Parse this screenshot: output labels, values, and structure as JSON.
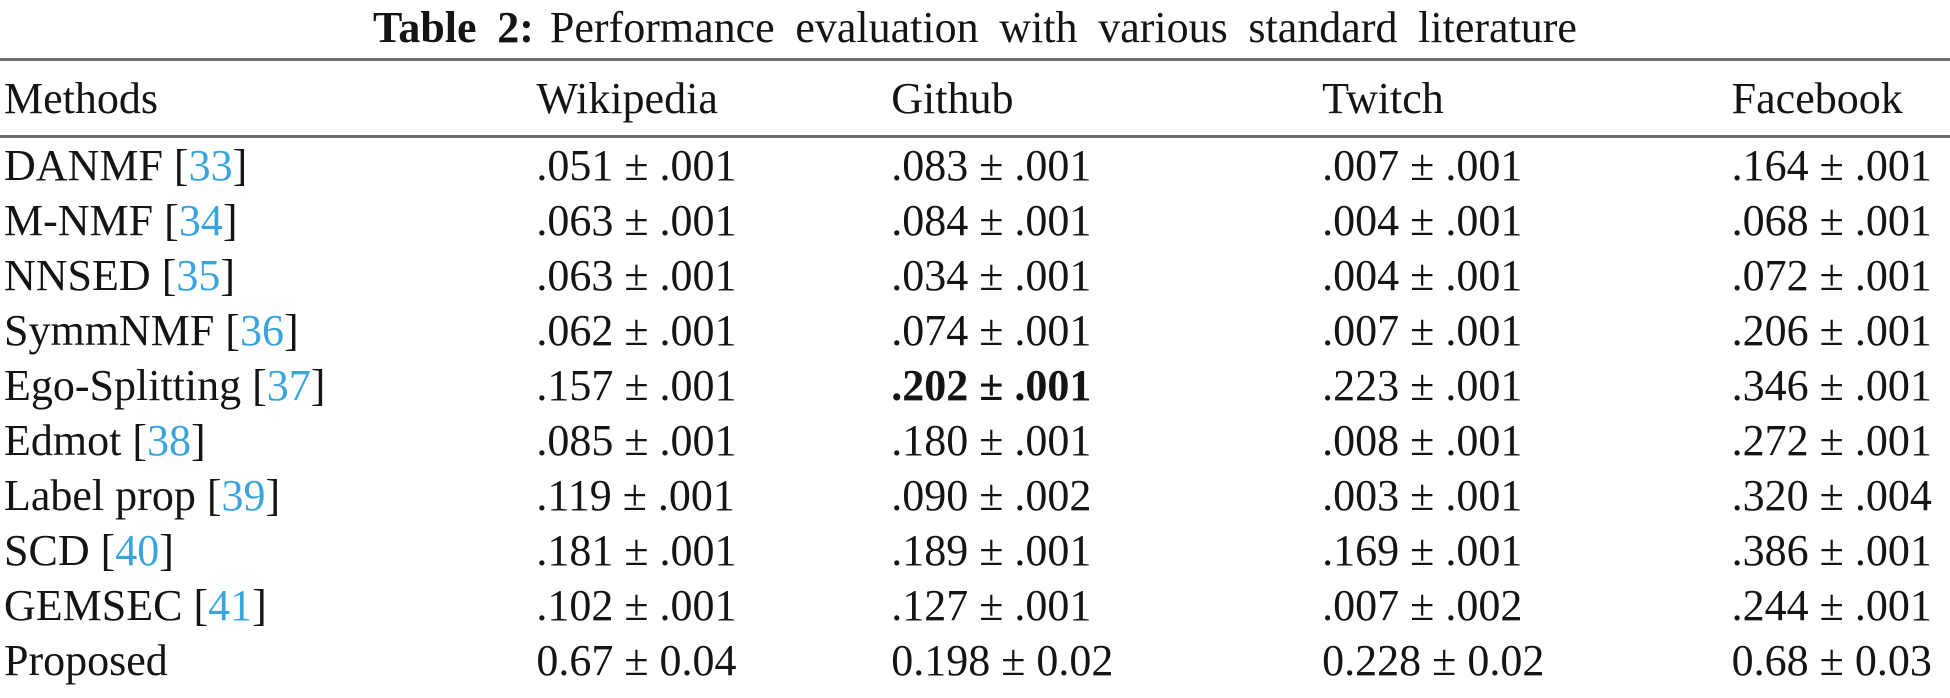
{
  "caption": {
    "label": "Table 2:",
    "text": "Performance evaluation with various standard literature"
  },
  "table": {
    "columns": [
      "Methods",
      "Wikipedia",
      "Github",
      "Twitch",
      "Facebook"
    ],
    "rows": [
      {
        "method": "DANMF",
        "cite": "33",
        "bold_col": -1,
        "values": [
          ".051 ± .001",
          ".083 ± .001",
          ".007 ± .001",
          ".164 ± .001"
        ]
      },
      {
        "method": "M-NMF",
        "cite": "34",
        "bold_col": -1,
        "values": [
          ".063 ± .001",
          ".084 ± .001",
          ".004 ± .001",
          ".068 ± .001"
        ]
      },
      {
        "method": "NNSED",
        "cite": "35",
        "bold_col": -1,
        "values": [
          ".063 ± .001",
          ".034 ± .001",
          ".004 ± .001",
          ".072 ± .001"
        ]
      },
      {
        "method": "SymmNMF",
        "cite": "36",
        "bold_col": -1,
        "values": [
          ".062 ± .001",
          ".074 ± .001",
          ".007 ± .001",
          ".206 ± .001"
        ]
      },
      {
        "method": "Ego-Splitting",
        "cite": "37",
        "bold_col": 1,
        "values": [
          ".157 ± .001",
          ".202 ± .001",
          ".223 ± .001",
          ".346 ± .001"
        ]
      },
      {
        "method": "Edmot",
        "cite": "38",
        "bold_col": -1,
        "values": [
          ".085 ± .001",
          ".180 ± .001",
          ".008 ± .001",
          ".272 ± .001"
        ]
      },
      {
        "method": "Label prop",
        "cite": "39",
        "bold_col": -1,
        "values": [
          ".119 ± .001",
          ".090 ± .002",
          ".003 ± .001",
          ".320 ± .004"
        ]
      },
      {
        "method": "SCD",
        "cite": "40",
        "bold_col": -1,
        "values": [
          ".181 ± .001",
          ".189 ± .001",
          ".169 ± .001",
          ".386 ± .001"
        ]
      },
      {
        "method": "GEMSEC",
        "cite": "41",
        "bold_col": -1,
        "values": [
          ".102 ± .001",
          ".127 ± .001",
          ".007 ± .002",
          ".244 ± .001"
        ]
      },
      {
        "method": "Proposed",
        "cite": null,
        "bold_col": -1,
        "values": [
          "0.67 ± 0.04",
          "0.198 ± 0.02",
          "0.228 ± 0.02",
          "0.68 ± 0.03"
        ]
      }
    ]
  },
  "colors": {
    "citation_link": "#3AA5DC",
    "rule": "#6e6e6e",
    "text": "#141414"
  }
}
